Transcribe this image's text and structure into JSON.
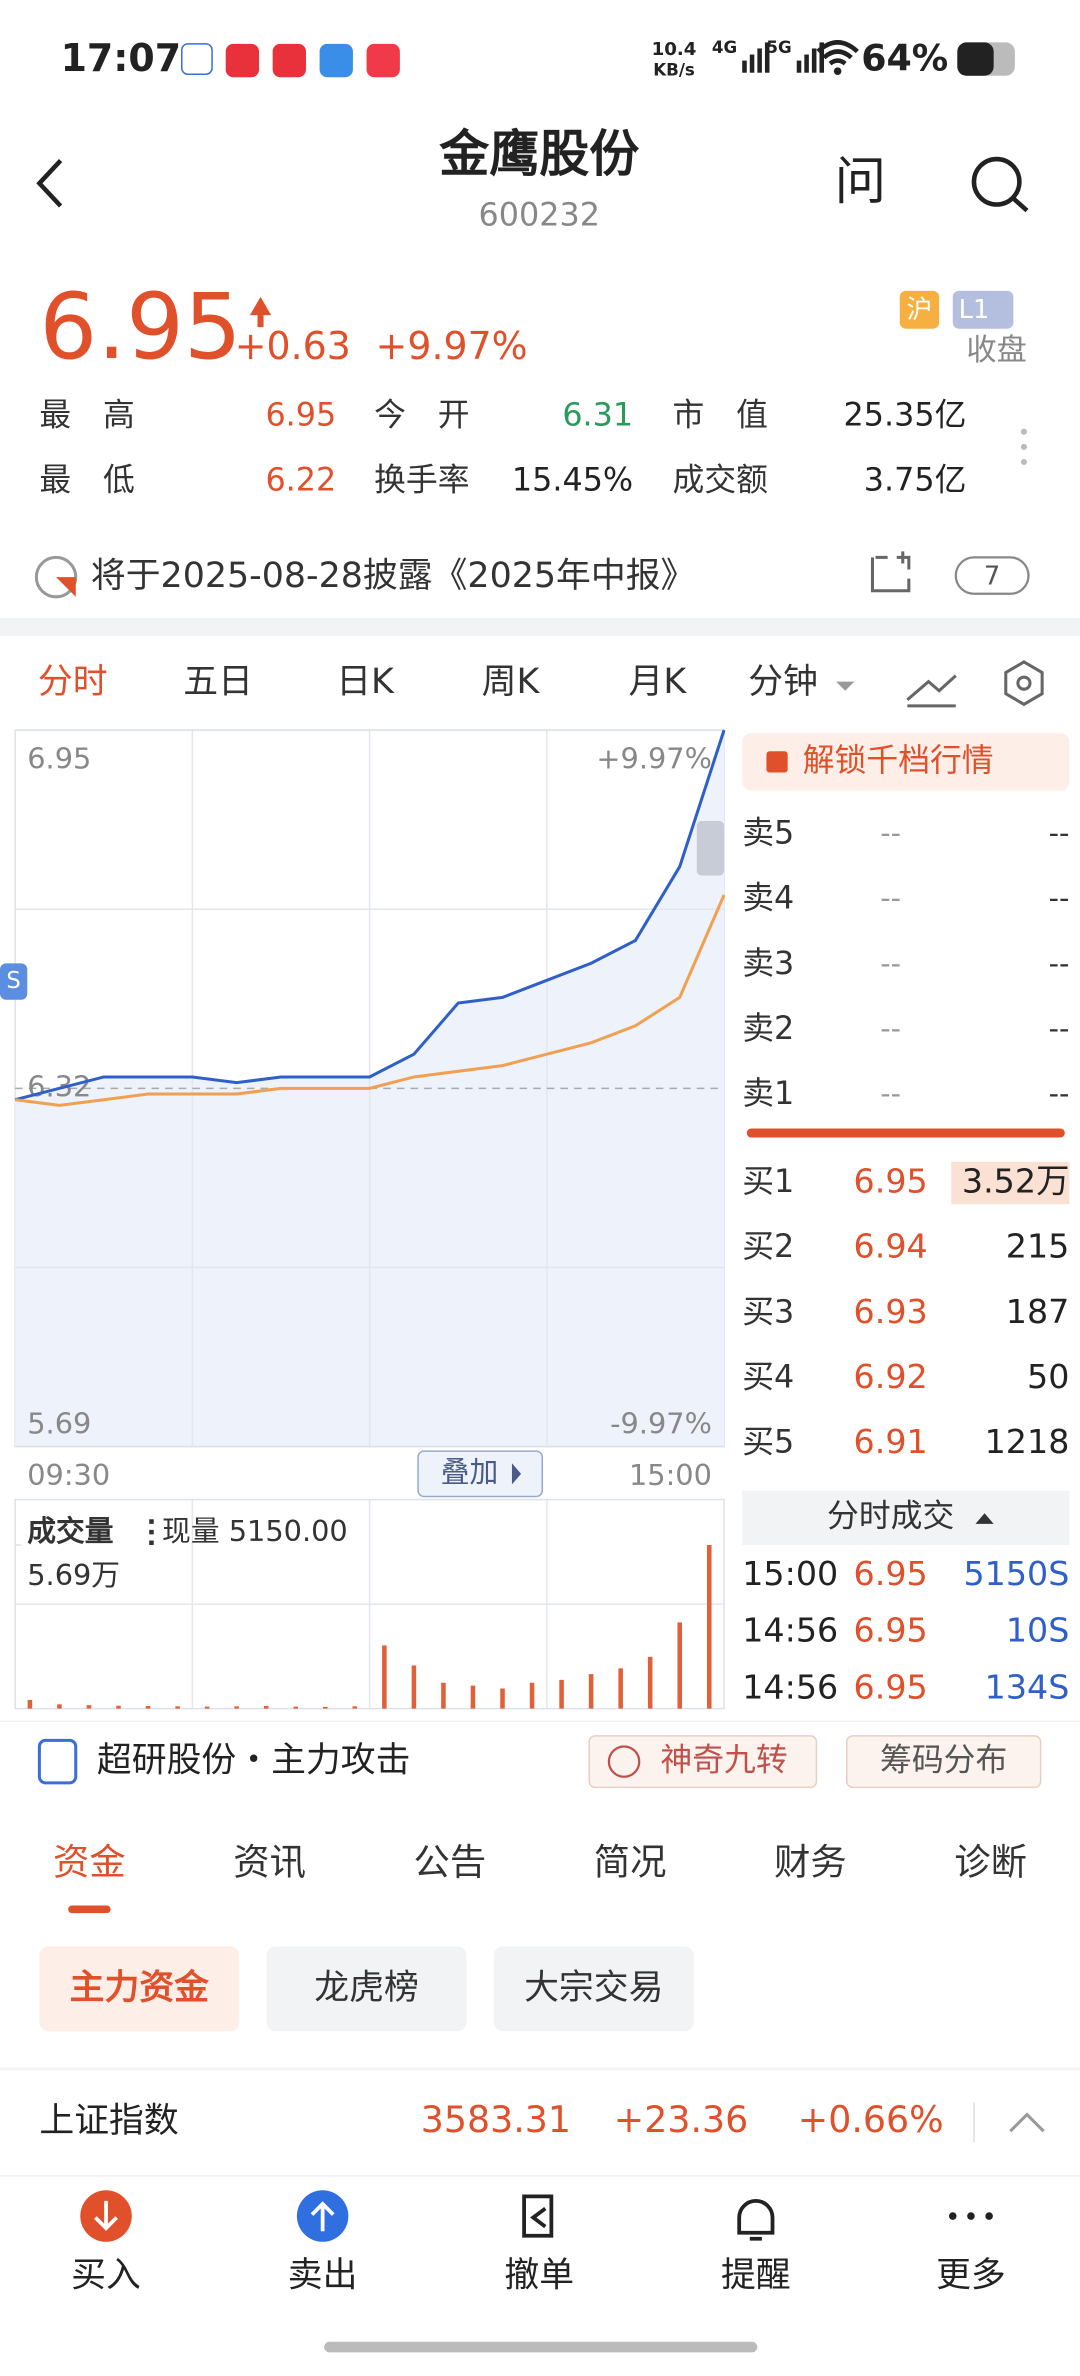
{
  "status_bar": {
    "time": "17:07",
    "net_speed": "10.4",
    "net_unit": "KB/s",
    "signal_1": "4G",
    "signal_2": "5G",
    "battery": "64%"
  },
  "header": {
    "title": "金鹰股份",
    "code": "600232",
    "ask": "问"
  },
  "quote": {
    "price": "6.95",
    "change": "+0.63",
    "change_pct": "+9.97%",
    "exchange": "沪",
    "level": "L1",
    "status": "收盘",
    "stats": [
      [
        "最　高",
        "6.95",
        "今　开",
        "6.31",
        "市　值",
        "25.35亿"
      ],
      [
        "最　低",
        "6.22",
        "换手率",
        "15.45%",
        "成交额",
        "3.75亿"
      ]
    ]
  },
  "notice": {
    "text": "将于2025-08-28披露《2025年中报》",
    "count": "7"
  },
  "chart_tabs": [
    "分时",
    "五日",
    "日K",
    "周K",
    "月K",
    "分钟"
  ],
  "chart_data": [
    {
      "type": "line",
      "categories": [
        "09:30",
        null,
        null,
        null,
        null,
        null,
        null,
        null,
        null,
        null,
        null,
        null,
        null,
        null,
        null,
        null,
        "15:00"
      ],
      "series": [
        {
          "color": "#2f5fc9",
          "values": [
            6.3,
            6.32,
            6.34,
            6.34,
            6.34,
            6.33,
            6.34,
            6.34,
            6.34,
            6.38,
            6.47,
            6.48,
            6.51,
            6.54,
            6.58,
            6.71,
            6.95
          ]
        },
        {
          "color": "#f0a050",
          "values": [
            6.3,
            6.29,
            6.3,
            6.31,
            6.31,
            6.31,
            6.32,
            6.32,
            6.32,
            6.34,
            6.35,
            6.36,
            6.38,
            6.4,
            6.43,
            6.48,
            6.66
          ]
        }
      ],
      "ylim": [
        5.69,
        6.95
      ],
      "yticks": [
        5.69,
        6.32,
        6.95
      ],
      "y2lim": [
        -9.97,
        9.97
      ],
      "y2ticks": [
        {
          "value": -9.97,
          "label": "-9.97%"
        },
        {
          "value": 9.97,
          "label": "+9.97%"
        }
      ],
      "marker_label": "S",
      "overlay_button": "叠加"
    },
    {
      "type": "bar",
      "title": "成交量",
      "annotation": "现量 5150.00",
      "color": "#e0603a",
      "categories": [
        null,
        null,
        null,
        null,
        null,
        null,
        null,
        null,
        null,
        null,
        null,
        null,
        null,
        null,
        null,
        null,
        null,
        null,
        null,
        null,
        null,
        null,
        null,
        null
      ],
      "values": [
        3000,
        1500,
        1200,
        1000,
        900,
        800,
        700,
        800,
        900,
        700,
        600,
        800,
        22000,
        15000,
        9000,
        8000,
        7000,
        9000,
        10000,
        12000,
        14000,
        18000,
        30000,
        56900
      ],
      "ylim": [
        0,
        56900
      ],
      "yticks": [
        {
          "value": 56900,
          "label": "5.69万"
        }
      ]
    }
  ],
  "order_book": {
    "unlock": "解锁千档行情",
    "asks": [
      [
        "卖5",
        "--",
        "--"
      ],
      [
        "卖4",
        "--",
        "--"
      ],
      [
        "卖3",
        "--",
        "--"
      ],
      [
        "卖2",
        "--",
        "--"
      ],
      [
        "卖1",
        "--",
        "--"
      ]
    ],
    "bids": [
      [
        "买1",
        "6.95",
        "3.52万"
      ],
      [
        "买2",
        "6.94",
        "215"
      ],
      [
        "买3",
        "6.93",
        "187"
      ],
      [
        "买4",
        "6.92",
        "50"
      ],
      [
        "买5",
        "6.91",
        "1218"
      ]
    ],
    "trades_title": "分时成交",
    "trades": [
      [
        "15:00",
        "6.95",
        "5150S"
      ],
      [
        "14:56",
        "6.95",
        "10S"
      ],
      [
        "14:56",
        "6.95",
        "134S"
      ]
    ]
  },
  "strategy": {
    "text": "超研股份・主力攻击",
    "buttons": [
      "神奇九转",
      "筹码分布"
    ]
  },
  "tabs": [
    "资金",
    "资讯",
    "公告",
    "简况",
    "财务",
    "诊断"
  ],
  "sub_tabs": [
    "主力资金",
    "龙虎榜",
    "大宗交易"
  ],
  "index_bar": {
    "name": "上证指数",
    "value": "3583.31",
    "change": "+23.36",
    "change_pct": "+0.66%"
  },
  "bottom_nav": [
    "买入",
    "卖出",
    "撤单",
    "提醒",
    "更多"
  ]
}
